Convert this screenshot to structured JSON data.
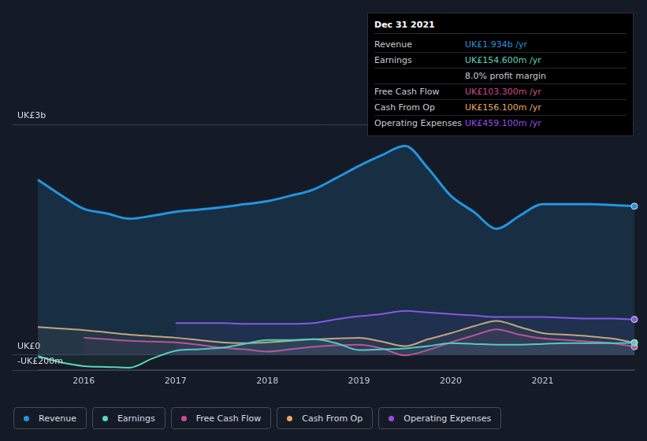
{
  "chart_data": {
    "type": "line",
    "x": [
      2015.5,
      2015.75,
      2016.0,
      2016.25,
      2016.5,
      2016.75,
      2017.0,
      2017.25,
      2017.5,
      2017.75,
      2018.0,
      2018.25,
      2018.5,
      2018.75,
      2019.0,
      2019.25,
      2019.5,
      2019.75,
      2020.0,
      2020.25,
      2020.5,
      2020.75,
      2021.0,
      2021.25,
      2021.5,
      2021.75,
      2022.0
    ],
    "series": [
      {
        "name": "Revenue",
        "color": "#2394df",
        "values": [
          2280,
          2080,
          1900,
          1840,
          1770,
          1810,
          1860,
          1890,
          1920,
          1960,
          2000,
          2070,
          2150,
          2300,
          2460,
          2600,
          2720,
          2430,
          2070,
          1860,
          1640,
          1810,
          1960,
          1960,
          1960,
          1950,
          1934
        ]
      },
      {
        "name": "Earnings",
        "color": "#58d6bc",
        "values": [
          -20,
          -100,
          -150,
          -160,
          -170,
          -50,
          50,
          70,
          90,
          140,
          190,
          190,
          200,
          150,
          60,
          70,
          80,
          110,
          150,
          140,
          130,
          130,
          140,
          150,
          150,
          150,
          154.6
        ]
      },
      {
        "name": "Free Cash Flow",
        "color": "#d14a8b",
        "values": [
          null,
          null,
          220,
          200,
          180,
          170,
          160,
          130,
          90,
          70,
          40,
          70,
          100,
          120,
          130,
          80,
          -10,
          60,
          160,
          250,
          330,
          260,
          210,
          190,
          170,
          150,
          103.3
        ]
      },
      {
        "name": "Cash From Op",
        "color": "#e3a869",
        "values": [
          360,
          340,
          320,
          290,
          260,
          240,
          220,
          190,
          160,
          150,
          160,
          180,
          200,
          210,
          220,
          170,
          110,
          200,
          280,
          370,
          440,
          360,
          280,
          260,
          240,
          210,
          156.1
        ]
      },
      {
        "name": "Operating Expenses",
        "color": "#9b4be8",
        "values": [
          null,
          null,
          null,
          null,
          null,
          null,
          410,
          410,
          410,
          400,
          400,
          400,
          410,
          460,
          500,
          530,
          570,
          550,
          530,
          510,
          490,
          490,
          490,
          480,
          470,
          470,
          459.1
        ]
      }
    ],
    "xlim": [
      2015.5,
      2022.0
    ],
    "xticks": [
      2016,
      2017,
      2018,
      2019,
      2020,
      2021
    ],
    "ylim": [
      -200,
      3000
    ],
    "yticks": [
      {
        "value": -200,
        "label": "-UK£200m"
      },
      {
        "value": 0,
        "label": "UK£0"
      },
      {
        "value": 3000,
        "label": "UK£3b"
      }
    ],
    "grid": true,
    "legend": "bottom",
    "annotations": {
      "info_box": {
        "title": "Dec 31 2021",
        "rows": [
          {
            "label": "Revenue",
            "value": "UK£1.934b /yr"
          },
          {
            "label": "Earnings",
            "value": "UK£154.600m /yr"
          },
          {
            "value": "8.0% profit margin"
          },
          {
            "label": "Free Cash Flow",
            "value": "UK£103.300m /yr"
          },
          {
            "label": "Cash From Op",
            "value": "UK£156.100m /yr"
          },
          {
            "label": "Operating Expenses",
            "value": "UK£459.100m /yr"
          }
        ]
      }
    }
  }
}
